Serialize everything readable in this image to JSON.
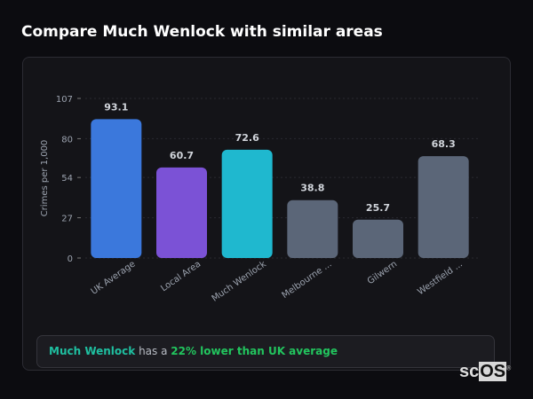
{
  "title": "Compare Much Wenlock with similar areas",
  "chart_data": {
    "type": "bar",
    "categories": [
      "UK Average",
      "Local Area",
      "Much Wenlock",
      "Melbourne ...",
      "Gilwern",
      "Westfield ..."
    ],
    "values": [
      93.1,
      60.7,
      72.6,
      38.8,
      25.7,
      68.3
    ],
    "value_labels": [
      "93.1",
      "60.7",
      "72.6",
      "38.8",
      "25.7",
      "68.3"
    ],
    "colors": [
      "#3b78dc",
      "#7b52d6",
      "#1fb8cf",
      "#5b6678",
      "#5b6678",
      "#5b6678"
    ],
    "ylabel": "Crimes per 1,000",
    "xlabel": "",
    "ylim": [
      0,
      107
    ],
    "yticks": [
      0,
      27,
      54,
      80,
      107
    ],
    "grid": true
  },
  "insight": {
    "area": "Much Wenlock",
    "middle": " has a ",
    "comparison": "22% lower than UK average"
  },
  "logo": {
    "text1": "sc",
    "text2": "OS",
    "mark": "®"
  }
}
